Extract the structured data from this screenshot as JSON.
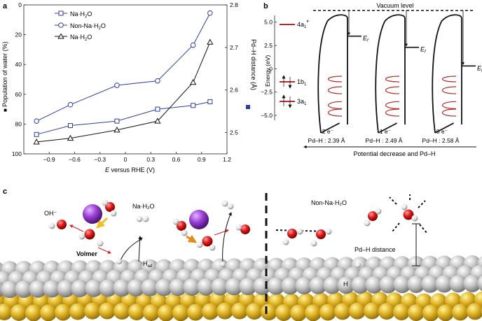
{
  "panels": {
    "a": "a",
    "b": "b",
    "c": "c"
  },
  "chart_data": {
    "type": "line",
    "xlabel_italic": "E",
    "xlabel_rest": " versus RHE (V)",
    "ylabel_left": "Population of water (%)",
    "ylabel_right": "Pd–H distance (Å)",
    "xlim": [
      -1.2,
      1.2
    ],
    "ylim_left": [
      100,
      0
    ],
    "ylim_right": [
      2.45,
      2.8
    ],
    "x_ticks": [
      "−0.9",
      "−0.6",
      "−0.3",
      "0",
      "0.3",
      "0.6",
      "0.9",
      "1.2"
    ],
    "x_tick_values": [
      -0.9,
      -0.6,
      -0.3,
      0,
      0.3,
      0.6,
      0.9,
      1.2
    ],
    "y_left_ticks": [
      "100",
      "80",
      "60",
      "40",
      "20",
      "0"
    ],
    "y_left_tick_values": [
      100,
      80,
      60,
      40,
      20,
      0
    ],
    "y_right_ticks": [
      "2.5",
      "2.6",
      "2.7",
      "2.8"
    ],
    "y_right_tick_values": [
      2.5,
      2.6,
      2.7,
      2.8
    ],
    "series": [
      {
        "name": "Na·H2O",
        "axis": "left",
        "marker": "square",
        "color": "#2a3f9e",
        "x": [
          -1.05,
          -0.65,
          -0.1,
          0.38,
          0.8,
          1.0
        ],
        "y": [
          87,
          81,
          78,
          70,
          67.5,
          65
        ]
      },
      {
        "name": "Non-Na·H2O",
        "axis": "left",
        "marker": "circle",
        "color": "#2a3f9e",
        "x": [
          -1.05,
          -0.65,
          -0.1,
          0.38,
          0.8,
          1.0
        ],
        "y": [
          78,
          67,
          54,
          51,
          27,
          5.5
        ]
      },
      {
        "name": "Na·H2O",
        "axis": "left",
        "marker": "triangle",
        "color": "#111111",
        "x": [
          -1.05,
          -0.65,
          -0.1,
          0.38,
          0.8,
          1.0
        ],
        "y": [
          92,
          89.5,
          84,
          78,
          52,
          25
        ]
      }
    ],
    "legend": [
      "Na·H2O",
      "Non-Na·H2O",
      "Na·H2O"
    ]
  },
  "energy_diagram": {
    "vacuum_label": "Vacuum level",
    "ylabel": "Energy (eV)",
    "ylim": [
      -5.0,
      5.5
    ],
    "y_ticks": [
      "5.0",
      "2.5",
      "0",
      "−2.5",
      "−5.0"
    ],
    "y_tick_values": [
      5.0,
      2.5,
      0,
      -2.5,
      -5.0
    ],
    "orbital_labels": [
      "4a1*",
      "1b1",
      "3a1"
    ],
    "orbital_energies": [
      4.6,
      -1.4,
      -3.5
    ],
    "fermi_label": "E",
    "fermi_sub": "f",
    "fermi_levels": [
      3.5,
      2.3,
      0.3
    ],
    "electrons": [
      "2 e⁻",
      "1 e⁻",
      "0 e⁻"
    ],
    "distances": [
      "Pd–H : 2.39 Å",
      "Pd–H : 2.49 Å",
      "Pd–H : 2.58 Å"
    ],
    "arrow_label": "Potential decrease and Pd–H"
  },
  "scene": {
    "label_oh": "OH⁻",
    "label_na_h2o": "Na·H₂O",
    "label_volmer": "Volmer",
    "label_had": "H",
    "label_had_sub": "ad",
    "label_non_na": "Non-Na·H₂O",
    "label_pdh": "Pd–H distance",
    "label_h": "H"
  }
}
